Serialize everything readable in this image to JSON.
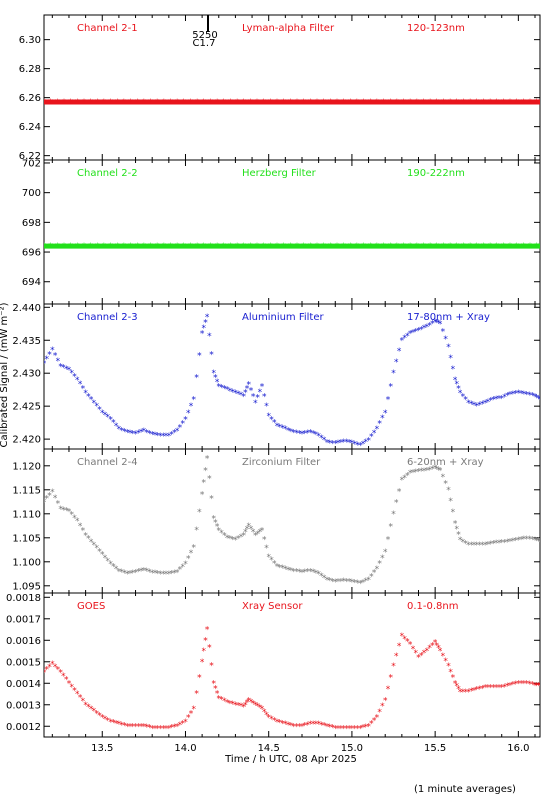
{
  "figure": {
    "xlabel": "Time / h UTC, 08 Apr 2025",
    "ylabel": "Calibrated Signal / (mW m⁻²)",
    "footnote": "(1 minute averages)",
    "marker_top": "5250",
    "marker_bottom": "C1.7",
    "marker_time": 14.13,
    "x_ticks": [
      "13.5",
      "14.0",
      "14.5",
      "15.0",
      "15.5",
      "16.0"
    ],
    "xlim": [
      13.15,
      16.13
    ]
  },
  "chart_data": [
    {
      "type": "scatter",
      "title": "Channel 2-1",
      "filter": "Lyman-alpha Filter",
      "band": "120-123nm",
      "color": "#e8141c",
      "ylim": [
        6.217,
        6.317
      ],
      "y_ticks": [
        "6.22",
        "6.24",
        "6.26",
        "6.28",
        "6.30"
      ],
      "y_tick_values": [
        6.22,
        6.24,
        6.26,
        6.28,
        6.3
      ],
      "style": "flat",
      "level": 6.257
    },
    {
      "type": "scatter",
      "title": "Channel 2-2",
      "filter": "Herzberg Filter",
      "band": "190-222nm",
      "color": "#22e01a",
      "ylim": [
        692.5,
        702.2
      ],
      "y_ticks": [
        "694",
        "696",
        "698",
        "700",
        "702"
      ],
      "y_tick_values": [
        694,
        696,
        698,
        700,
        702
      ],
      "style": "flat",
      "level": 696.4
    },
    {
      "type": "scatter",
      "title": "Channel 2-3",
      "filter": "Aluminium Filter",
      "band": "17-80nm + Xray",
      "color": "#1a20d0",
      "ylim": [
        2.4185,
        2.4405
      ],
      "y_ticks": [
        "2.420",
        "2.425",
        "2.430",
        "2.435",
        "2.440"
      ],
      "y_tick_values": [
        2.42,
        2.425,
        2.43,
        2.435,
        2.44
      ],
      "points": [
        [
          13.15,
          2.4315
        ],
        [
          13.2,
          2.4335
        ],
        [
          13.25,
          2.431
        ],
        [
          13.3,
          2.4305
        ],
        [
          13.35,
          2.429
        ],
        [
          13.4,
          2.427
        ],
        [
          13.45,
          2.4255
        ],
        [
          13.5,
          2.424
        ],
        [
          13.55,
          2.423
        ],
        [
          13.6,
          2.4215
        ],
        [
          13.65,
          2.421
        ],
        [
          13.7,
          2.4208
        ],
        [
          13.75,
          2.4212
        ],
        [
          13.8,
          2.4207
        ],
        [
          13.85,
          2.4205
        ],
        [
          13.9,
          2.4205
        ],
        [
          13.95,
          2.4212
        ],
        [
          14.0,
          2.423
        ],
        [
          14.05,
          2.426
        ],
        [
          14.1,
          2.436
        ],
        [
          14.13,
          2.4385
        ],
        [
          14.17,
          2.43
        ],
        [
          14.2,
          2.428
        ],
        [
          14.25,
          2.4275
        ],
        [
          14.3,
          2.427
        ],
        [
          14.35,
          2.4265
        ],
        [
          14.38,
          2.4283
        ],
        [
          14.42,
          2.4255
        ],
        [
          14.46,
          2.428
        ],
        [
          14.5,
          2.4235
        ],
        [
          14.55,
          2.422
        ],
        [
          14.6,
          2.4215
        ],
        [
          14.65,
          2.421
        ],
        [
          14.7,
          2.4208
        ],
        [
          14.75,
          2.421
        ],
        [
          14.8,
          2.4205
        ],
        [
          14.85,
          2.4195
        ],
        [
          14.9,
          2.4193
        ],
        [
          14.95,
          2.4196
        ],
        [
          15.0,
          2.4194
        ],
        [
          15.05,
          2.419
        ],
        [
          15.1,
          2.4198
        ],
        [
          15.15,
          2.4215
        ],
        [
          15.2,
          2.424
        ],
        [
          15.25,
          2.43
        ],
        [
          15.3,
          2.435
        ],
        [
          15.35,
          2.436
        ],
        [
          15.4,
          2.4365
        ],
        [
          15.45,
          2.437
        ],
        [
          15.5,
          2.4378
        ],
        [
          15.53,
          2.4375
        ],
        [
          15.58,
          2.434
        ],
        [
          15.62,
          2.429
        ],
        [
          15.65,
          2.427
        ],
        [
          15.7,
          2.4255
        ],
        [
          15.75,
          2.425
        ],
        [
          15.8,
          2.4255
        ],
        [
          15.85,
          2.426
        ],
        [
          15.9,
          2.4262
        ],
        [
          15.95,
          2.4268
        ],
        [
          16.0,
          2.427
        ],
        [
          16.05,
          2.4268
        ],
        [
          16.1,
          2.4265
        ],
        [
          16.13,
          2.426
        ]
      ]
    },
    {
      "type": "scatter",
      "title": "Channel 2-4",
      "filter": "Zirconium Filter",
      "band": "6-20nm + Xray",
      "color": "#7a7a7a",
      "ylim": [
        1.0935,
        1.1235
      ],
      "y_ticks": [
        "1.095",
        "1.100",
        "1.105",
        "1.110",
        "1.115",
        "1.120"
      ],
      "y_tick_values": [
        1.095,
        1.1,
        1.105,
        1.11,
        1.115,
        1.12
      ],
      "points": [
        [
          13.15,
          1.1125
        ],
        [
          13.2,
          1.1145
        ],
        [
          13.25,
          1.111
        ],
        [
          13.3,
          1.1105
        ],
        [
          13.35,
          1.1085
        ],
        [
          13.4,
          1.1055
        ],
        [
          13.45,
          1.1035
        ],
        [
          13.5,
          1.1015
        ],
        [
          13.55,
          1.0995
        ],
        [
          13.6,
          1.098
        ],
        [
          13.65,
          1.0975
        ],
        [
          13.7,
          1.0978
        ],
        [
          13.75,
          1.0982
        ],
        [
          13.8,
          1.0977
        ],
        [
          13.85,
          1.0975
        ],
        [
          13.9,
          1.0975
        ],
        [
          13.95,
          1.0978
        ],
        [
          14.0,
          1.0995
        ],
        [
          14.05,
          1.103
        ],
        [
          14.1,
          1.114
        ],
        [
          14.13,
          1.1215
        ],
        [
          14.17,
          1.109
        ],
        [
          14.2,
          1.1065
        ],
        [
          14.25,
          1.105
        ],
        [
          14.3,
          1.1045
        ],
        [
          14.35,
          1.1055
        ],
        [
          14.38,
          1.1075
        ],
        [
          14.42,
          1.1055
        ],
        [
          14.46,
          1.1065
        ],
        [
          14.5,
          1.101
        ],
        [
          14.55,
          1.099
        ],
        [
          14.6,
          1.0985
        ],
        [
          14.65,
          1.098
        ],
        [
          14.7,
          1.0978
        ],
        [
          14.75,
          1.098
        ],
        [
          14.8,
          1.0975
        ],
        [
          14.85,
          1.0962
        ],
        [
          14.9,
          1.0958
        ],
        [
          14.95,
          1.096
        ],
        [
          15.0,
          1.0958
        ],
        [
          15.05,
          1.0955
        ],
        [
          15.1,
          1.0962
        ],
        [
          15.15,
          1.0985
        ],
        [
          15.2,
          1.102
        ],
        [
          15.25,
          1.11
        ],
        [
          15.3,
          1.117
        ],
        [
          15.35,
          1.1185
        ],
        [
          15.4,
          1.1188
        ],
        [
          15.45,
          1.119
        ],
        [
          15.5,
          1.1195
        ],
        [
          15.53,
          1.119
        ],
        [
          15.58,
          1.115
        ],
        [
          15.62,
          1.108
        ],
        [
          15.65,
          1.1045
        ],
        [
          15.7,
          1.1035
        ],
        [
          15.75,
          1.1035
        ],
        [
          15.8,
          1.1035
        ],
        [
          15.85,
          1.1038
        ],
        [
          15.9,
          1.104
        ],
        [
          15.95,
          1.1042
        ],
        [
          16.0,
          1.1045
        ],
        [
          16.05,
          1.1048
        ],
        [
          16.1,
          1.1045
        ],
        [
          16.13,
          1.1042
        ]
      ]
    },
    {
      "type": "scatter",
      "title": "GOES",
      "filter": "Xray Sensor",
      "band": "0.1-0.8nm",
      "color": "#e8141c",
      "ylim": [
        0.00115,
        0.00182
      ],
      "y_ticks": [
        "0.0012",
        "0.0013",
        "0.0014",
        "0.0015",
        "0.0016",
        "0.0017",
        "0.0018"
      ],
      "y_tick_values": [
        0.0012,
        0.0013,
        0.0014,
        0.0015,
        0.0016,
        0.0017,
        0.0018
      ],
      "points": [
        [
          13.15,
          0.00145
        ],
        [
          13.2,
          0.00149
        ],
        [
          13.25,
          0.00145
        ],
        [
          13.3,
          0.0014
        ],
        [
          13.35,
          0.00135
        ],
        [
          13.4,
          0.0013
        ],
        [
          13.45,
          0.00127
        ],
        [
          13.5,
          0.00124
        ],
        [
          13.55,
          0.00122
        ],
        [
          13.6,
          0.00121
        ],
        [
          13.65,
          0.0012
        ],
        [
          13.7,
          0.0012
        ],
        [
          13.75,
          0.0012
        ],
        [
          13.8,
          0.00119
        ],
        [
          13.85,
          0.00119
        ],
        [
          13.9,
          0.00119
        ],
        [
          13.95,
          0.0012
        ],
        [
          14.0,
          0.00122
        ],
        [
          14.05,
          0.00128
        ],
        [
          14.1,
          0.0015
        ],
        [
          14.13,
          0.00165
        ],
        [
          14.17,
          0.0014
        ],
        [
          14.2,
          0.00133
        ],
        [
          14.25,
          0.00131
        ],
        [
          14.3,
          0.0013
        ],
        [
          14.35,
          0.00129
        ],
        [
          14.38,
          0.00132
        ],
        [
          14.42,
          0.0013
        ],
        [
          14.46,
          0.00128
        ],
        [
          14.5,
          0.00124
        ],
        [
          14.55,
          0.00122
        ],
        [
          14.6,
          0.00121
        ],
        [
          14.65,
          0.0012
        ],
        [
          14.7,
          0.0012
        ],
        [
          14.75,
          0.00121
        ],
        [
          14.8,
          0.00121
        ],
        [
          14.85,
          0.0012
        ],
        [
          14.9,
          0.00119
        ],
        [
          14.95,
          0.00119
        ],
        [
          15.0,
          0.00119
        ],
        [
          15.05,
          0.00119
        ],
        [
          15.1,
          0.0012
        ],
        [
          15.15,
          0.00124
        ],
        [
          15.2,
          0.00132
        ],
        [
          15.25,
          0.00148
        ],
        [
          15.3,
          0.00162
        ],
        [
          15.35,
          0.00158
        ],
        [
          15.4,
          0.00152
        ],
        [
          15.45,
          0.00155
        ],
        [
          15.5,
          0.00159
        ],
        [
          15.53,
          0.00155
        ],
        [
          15.58,
          0.00148
        ],
        [
          15.62,
          0.0014
        ],
        [
          15.65,
          0.00136
        ],
        [
          15.7,
          0.00136
        ],
        [
          15.75,
          0.00137
        ],
        [
          15.8,
          0.00138
        ],
        [
          15.85,
          0.00138
        ],
        [
          15.9,
          0.00138
        ],
        [
          15.95,
          0.00139
        ],
        [
          16.0,
          0.0014
        ],
        [
          16.05,
          0.0014
        ],
        [
          16.1,
          0.00139
        ],
        [
          16.13,
          0.00139
        ]
      ]
    }
  ]
}
